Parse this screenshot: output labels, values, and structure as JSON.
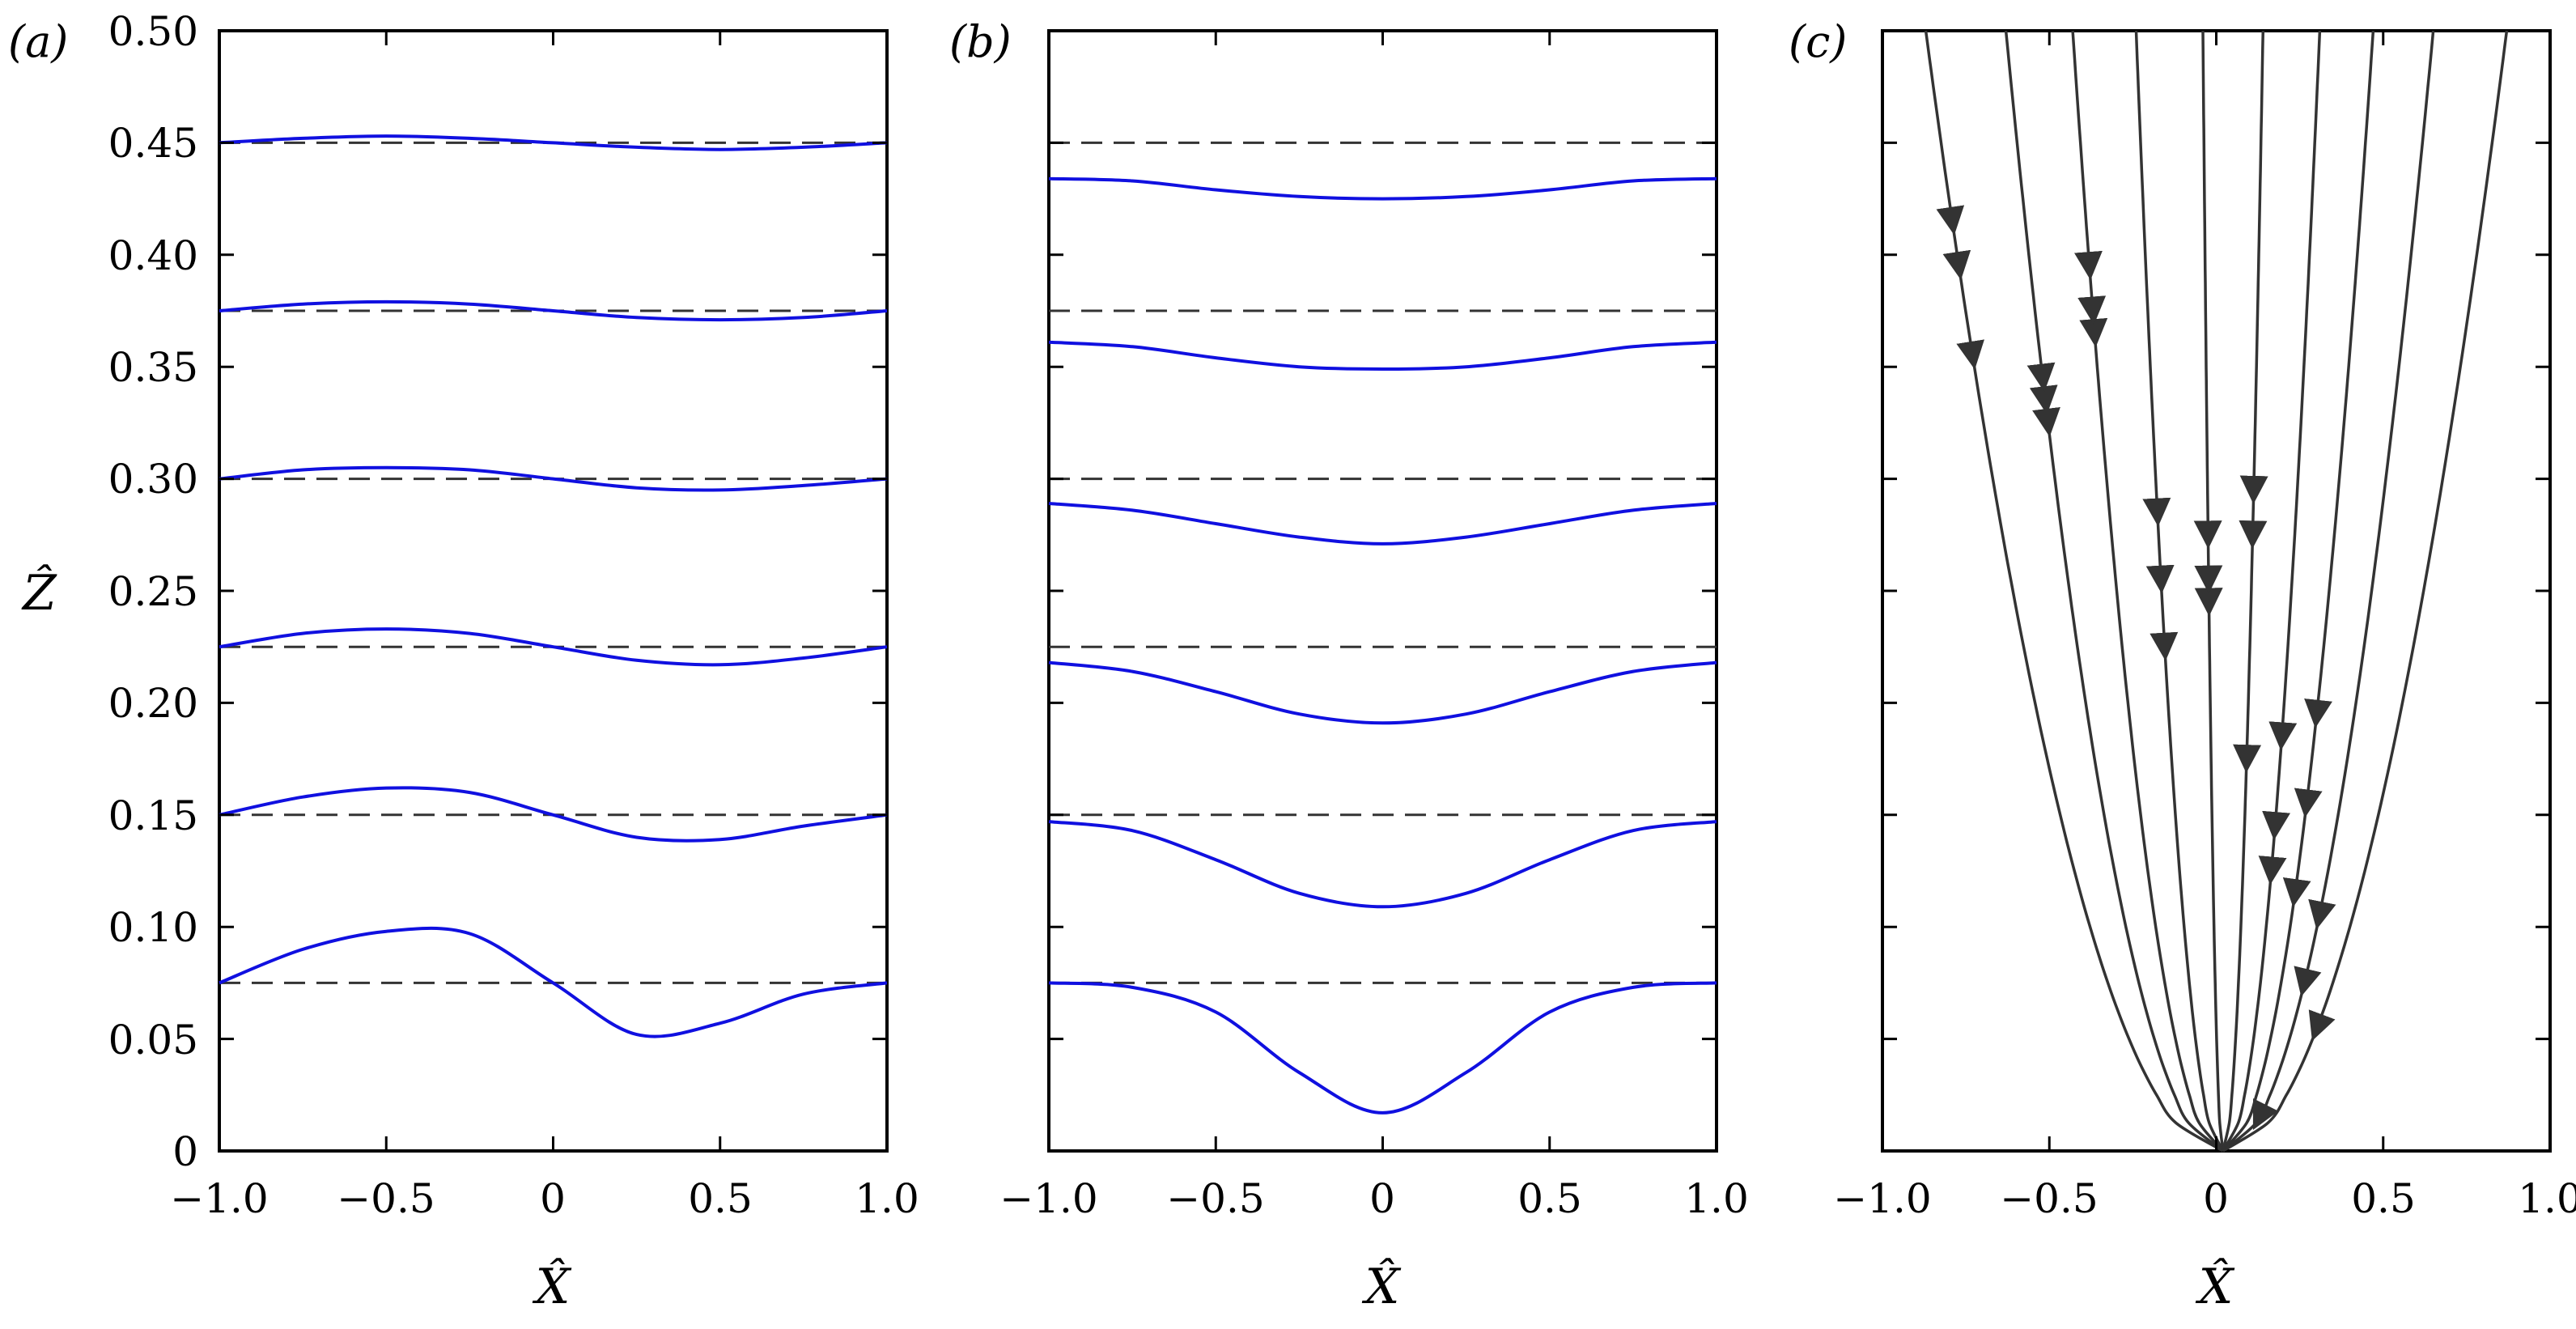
{
  "chart_data": [
    {
      "panel_label": "(a)",
      "type": "line",
      "xlabel": "X̂",
      "ylabel": "Ẑ",
      "xlim": [
        -1.0,
        1.0
      ],
      "ylim": [
        0,
        0.5
      ],
      "xticks": [
        "−1.0",
        "−0.5",
        "0",
        "0.5",
        "1.0"
      ],
      "yticks": [
        "0",
        "0.05",
        "0.10",
        "0.15",
        "0.20",
        "0.25",
        "0.30",
        "0.35",
        "0.40",
        "0.45",
        "0.50"
      ],
      "series_color": "#1010e0",
      "reference_color": "#333333",
      "reference_levels": [
        0.075,
        0.15,
        0.225,
        0.3,
        0.375,
        0.45
      ],
      "series": [
        {
          "x": [
            -1.0,
            -0.75,
            -0.5,
            -0.25,
            0,
            0.25,
            0.5,
            0.75,
            1.0
          ],
          "y": [
            0.075,
            0.09,
            0.098,
            0.097,
            0.075,
            0.052,
            0.057,
            0.07,
            0.075
          ]
        },
        {
          "x": [
            -1.0,
            -0.75,
            -0.5,
            -0.25,
            0,
            0.25,
            0.5,
            0.75,
            1.0
          ],
          "y": [
            0.15,
            0.158,
            0.162,
            0.16,
            0.15,
            0.14,
            0.139,
            0.145,
            0.15
          ]
        },
        {
          "x": [
            -1.0,
            -0.75,
            -0.5,
            -0.25,
            0,
            0.25,
            0.5,
            0.75,
            1.0
          ],
          "y": [
            0.225,
            0.231,
            0.233,
            0.231,
            0.225,
            0.219,
            0.217,
            0.22,
            0.225
          ]
        },
        {
          "x": [
            -1.0,
            -0.75,
            -0.5,
            -0.25,
            0,
            0.25,
            0.5,
            0.75,
            1.0
          ],
          "y": [
            0.3,
            0.304,
            0.305,
            0.304,
            0.3,
            0.296,
            0.295,
            0.297,
            0.3
          ]
        },
        {
          "x": [
            -1.0,
            -0.75,
            -0.5,
            -0.25,
            0,
            0.25,
            0.5,
            0.75,
            1.0
          ],
          "y": [
            0.375,
            0.378,
            0.379,
            0.378,
            0.375,
            0.372,
            0.371,
            0.372,
            0.375
          ]
        },
        {
          "x": [
            -1.0,
            -0.75,
            -0.5,
            -0.25,
            0,
            0.25,
            0.5,
            0.75,
            1.0
          ],
          "y": [
            0.45,
            0.452,
            0.453,
            0.452,
            0.45,
            0.448,
            0.447,
            0.448,
            0.45
          ]
        }
      ]
    },
    {
      "panel_label": "(b)",
      "type": "line",
      "xlabel": "X̂",
      "xlim": [
        -1.0,
        1.0
      ],
      "ylim": [
        0,
        0.5
      ],
      "xticks": [
        "−1.0",
        "−0.5",
        "0",
        "0.5",
        "1.0"
      ],
      "series_color": "#1010e0",
      "reference_color": "#333333",
      "reference_levels": [
        0.075,
        0.15,
        0.225,
        0.3,
        0.375,
        0.45
      ],
      "series": [
        {
          "x": [
            -1.0,
            -0.75,
            -0.5,
            -0.25,
            0,
            0.25,
            0.5,
            0.75,
            1.0
          ],
          "y": [
            0.075,
            0.073,
            0.062,
            0.035,
            0.017,
            0.035,
            0.062,
            0.073,
            0.075
          ]
        },
        {
          "x": [
            -1.0,
            -0.75,
            -0.5,
            -0.25,
            0,
            0.25,
            0.5,
            0.75,
            1.0
          ],
          "y": [
            0.147,
            0.143,
            0.13,
            0.115,
            0.109,
            0.115,
            0.13,
            0.143,
            0.147
          ]
        },
        {
          "x": [
            -1.0,
            -0.75,
            -0.5,
            -0.25,
            0,
            0.25,
            0.5,
            0.75,
            1.0
          ],
          "y": [
            0.218,
            0.214,
            0.205,
            0.195,
            0.191,
            0.195,
            0.205,
            0.214,
            0.218
          ]
        },
        {
          "x": [
            -1.0,
            -0.75,
            -0.5,
            -0.25,
            0,
            0.25,
            0.5,
            0.75,
            1.0
          ],
          "y": [
            0.289,
            0.286,
            0.28,
            0.274,
            0.271,
            0.274,
            0.28,
            0.286,
            0.289
          ]
        },
        {
          "x": [
            -1.0,
            -0.75,
            -0.5,
            -0.25,
            0,
            0.25,
            0.5,
            0.75,
            1.0
          ],
          "y": [
            0.361,
            0.359,
            0.354,
            0.35,
            0.349,
            0.35,
            0.354,
            0.359,
            0.361
          ]
        },
        {
          "x": [
            -1.0,
            -0.75,
            -0.5,
            -0.25,
            0,
            0.25,
            0.5,
            0.75,
            1.0
          ],
          "y": [
            0.434,
            0.433,
            0.429,
            0.426,
            0.425,
            0.426,
            0.429,
            0.433,
            0.434
          ]
        }
      ]
    },
    {
      "panel_label": "(c)",
      "type": "line",
      "xlabel": "X̂",
      "xlim": [
        -1.0,
        1.0
      ],
      "ylim": [
        0,
        0.5
      ],
      "xticks": [
        "−1.0",
        "−0.5",
        "0",
        "0.5",
        "1.0"
      ],
      "series_color": "#333333",
      "streamline_origin": [
        0.02,
        0
      ],
      "streamline_top_x": [
        -0.87,
        -0.63,
        -0.43,
        -0.24,
        -0.04,
        0.14,
        0.31,
        0.47,
        0.65,
        0.87
      ],
      "arrow_heights": [
        0.42,
        0.4,
        0.36,
        0.34,
        0.33,
        0.35,
        0.37,
        0.4,
        0.38,
        0.29,
        0.26,
        0.23,
        0.25,
        0.26,
        0.28,
        0.3,
        0.28,
        0.18,
        0.15,
        0.19,
        0.13,
        0.16,
        0.12,
        0.2,
        0.11,
        0.08,
        0.02,
        0.06
      ]
    }
  ]
}
